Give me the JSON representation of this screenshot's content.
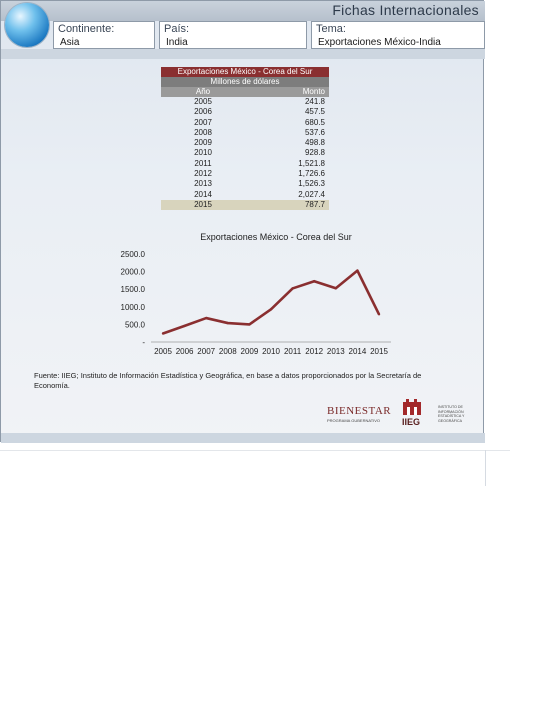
{
  "header": {
    "app_title": "Fichas Internacionales",
    "fields": [
      {
        "label": "Continente:",
        "value": "Asia"
      },
      {
        "label": "País:",
        "value": "India"
      },
      {
        "label": "Tema:",
        "value": "Exportaciones México-India"
      }
    ]
  },
  "table": {
    "title": "Exportaciones México - Corea del Sur",
    "subtitle": "Millones de dólares",
    "col_year": "Año",
    "col_amount": "Monto",
    "rows": [
      {
        "year": "2005",
        "amount": "241.8"
      },
      {
        "year": "2006",
        "amount": "457.5"
      },
      {
        "year": "2007",
        "amount": "680.5"
      },
      {
        "year": "2008",
        "amount": "537.6"
      },
      {
        "year": "2009",
        "amount": "498.8"
      },
      {
        "year": "2010",
        "amount": "928.8"
      },
      {
        "year": "2011",
        "amount": "1,521.8"
      },
      {
        "year": "2012",
        "amount": "1,726.6"
      },
      {
        "year": "2013",
        "amount": "1,526.3"
      },
      {
        "year": "2014",
        "amount": "2,027.4"
      },
      {
        "year": "2015",
        "amount": "787.7"
      }
    ]
  },
  "chart_data": {
    "type": "line",
    "title": "Exportaciones México - Corea del Sur",
    "categories": [
      "2005",
      "2006",
      "2007",
      "2008",
      "2009",
      "2010",
      "2011",
      "2012",
      "2013",
      "2014",
      "2015"
    ],
    "series": [
      {
        "values": [
          241.8,
          457.5,
          680.5,
          537.6,
          498.8,
          928.8,
          1521.8,
          1726.6,
          1526.3,
          2027.4,
          787.7
        ]
      }
    ],
    "y_ticks": [
      "2500.0",
      "2000.0",
      "1500.0",
      "1000.0",
      "500.0",
      "-"
    ],
    "ylim": [
      0,
      2500
    ],
    "line_color": "#8a2f30",
    "grid": false,
    "legend": "none"
  },
  "source": "Fuente: IIEG; Instituto de Información Estadística y Geográfica, en base a datos proporcionados por la Secretaría de Economía.",
  "logos": {
    "bienestar": "BIENESTAR",
    "bienestar_sub": "PROGRAMA GUBERNATIVO",
    "ieeg": "IIEG",
    "institute": "INSTITUTO DE INFORMACIÓN ESTADÍSTICA Y GEOGRÁFICA"
  }
}
